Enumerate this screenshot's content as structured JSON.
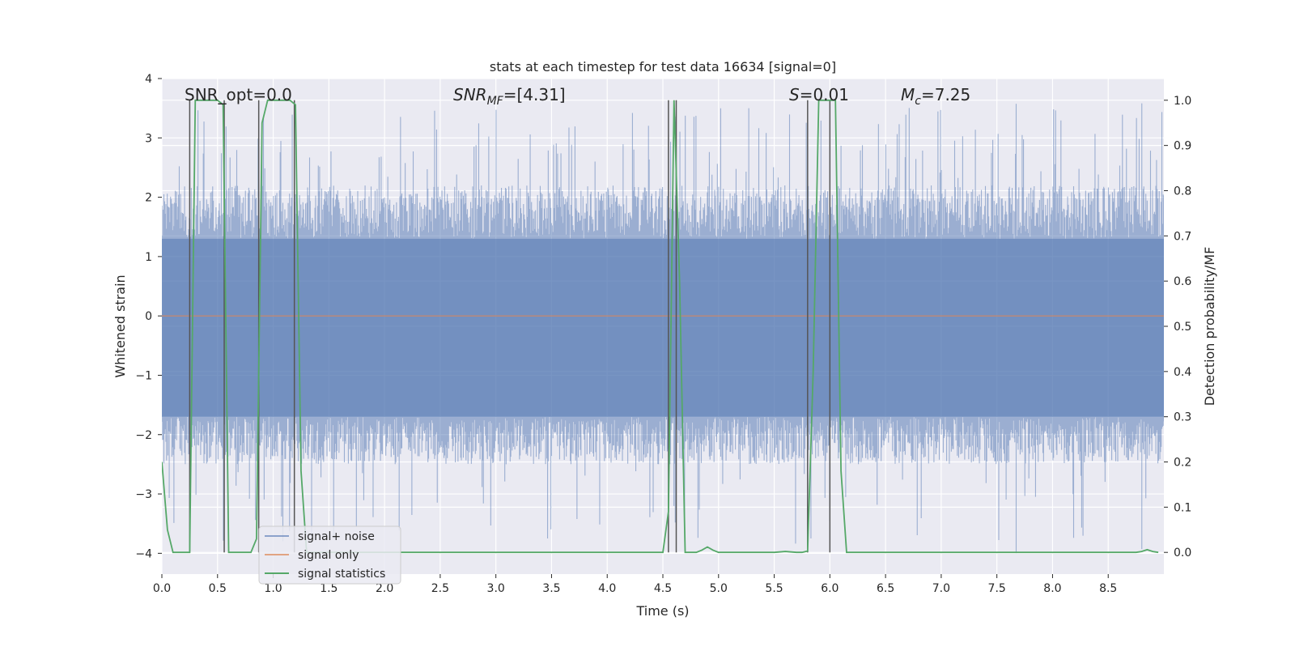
{
  "chart_data": {
    "type": "line",
    "title": "stats at each timestep for test data 16634 [signal=0]",
    "xlabel": "Time (s)",
    "ylabel_left": "Whitened strain",
    "ylabel_right": "Detection probability/MF",
    "xlim": [
      0.0,
      9.0
    ],
    "ylim_left": [
      -4.35,
      4.0
    ],
    "ylim_right": [
      -0.048,
      1.048
    ],
    "x_ticks": [
      "0.0",
      "0.5",
      "1.0",
      "1.5",
      "2.0",
      "2.5",
      "3.0",
      "3.5",
      "4.0",
      "4.5",
      "5.0",
      "5.5",
      "6.0",
      "6.5",
      "7.0",
      "7.5",
      "8.0",
      "8.5"
    ],
    "y_ticks_left": [
      "4",
      "3",
      "2",
      "1",
      "0",
      "−1",
      "−2",
      "−3",
      "−4"
    ],
    "y_ticks_right": [
      "1.0",
      "0.9",
      "0.8",
      "0.7",
      "0.6",
      "0.5",
      "0.4",
      "0.3",
      "0.2",
      "0.1",
      "0.0"
    ],
    "grid": true,
    "legend_position": "lower-left",
    "annotations": {
      "snr_opt": "SNR_opt=0.0",
      "snr_mf_base": "SNR",
      "snr_mf_sub": "MF",
      "snr_mf_value": "=[4.31]",
      "s_symbol": "S",
      "s_value": "=0.01",
      "mc_symbol": "M",
      "mc_sub": "c",
      "mc_value": "=7.25"
    },
    "colors": {
      "background": "#eaeaf2",
      "grid": "#ffffff",
      "noise": "#4c72b0",
      "signal": "#dd8452",
      "statistics": "#55a868",
      "vlines": "#555555"
    },
    "series": [
      {
        "name": "signal+ noise",
        "axis": "left",
        "style": "noise-band",
        "envelope_core": [
          -1.7,
          1.3
        ],
        "spike_range": [
          -4.0,
          3.6
        ]
      },
      {
        "name": "signal only",
        "axis": "left",
        "x": [
          0.0,
          9.0
        ],
        "y": [
          0.0,
          0.0
        ]
      },
      {
        "name": "signal statistics",
        "axis": "right",
        "x": [
          0.0,
          0.05,
          0.1,
          0.15,
          0.2,
          0.25,
          0.3,
          0.35,
          0.4,
          0.45,
          0.5,
          0.55,
          0.6,
          0.65,
          0.7,
          0.75,
          0.8,
          0.85,
          0.9,
          0.95,
          1.0,
          1.05,
          1.1,
          1.15,
          1.2,
          1.25,
          1.3,
          1.4,
          1.6,
          1.8,
          2.0,
          2.5,
          3.0,
          3.5,
          3.6,
          4.0,
          4.4,
          4.5,
          4.55,
          4.6,
          4.65,
          4.7,
          4.75,
          4.8,
          4.85,
          4.9,
          4.95,
          5.0,
          5.05,
          5.1,
          5.5,
          5.6,
          5.7,
          5.75,
          5.8,
          5.85,
          5.9,
          5.95,
          6.0,
          6.05,
          6.1,
          6.15,
          6.5,
          7.0,
          8.0,
          8.5,
          8.75,
          8.8,
          8.85,
          8.9,
          8.95
        ],
        "y": [
          0.2,
          0.05,
          0.0,
          0.0,
          0.0,
          0.0,
          1.0,
          1.0,
          1.0,
          1.0,
          1.0,
          0.99,
          0.0,
          0.0,
          0.0,
          0.0,
          0.0,
          0.03,
          0.95,
          1.0,
          1.0,
          1.0,
          1.0,
          1.0,
          0.99,
          0.18,
          0.0,
          0.0,
          0.0,
          0.0,
          0.0,
          0.0,
          0.0,
          0.0,
          0.0,
          0.0,
          0.0,
          0.0,
          0.09,
          1.0,
          0.6,
          0.0,
          0.0,
          0.0,
          0.005,
          0.012,
          0.005,
          0.0,
          0.0,
          0.0,
          0.0,
          0.002,
          0.0,
          0.0,
          0.003,
          0.4,
          1.0,
          1.0,
          1.0,
          1.0,
          0.18,
          0.0,
          0.0,
          0.0,
          0.0,
          0.0,
          0.0,
          0.002,
          0.006,
          0.002,
          0.0
        ]
      }
    ],
    "vertical_lines_x": [
      0.25,
      0.56,
      0.87,
      1.19,
      4.55,
      4.62,
      5.8,
      6.0
    ],
    "vertical_lines_range_right": [
      0.0,
      1.0
    ]
  }
}
